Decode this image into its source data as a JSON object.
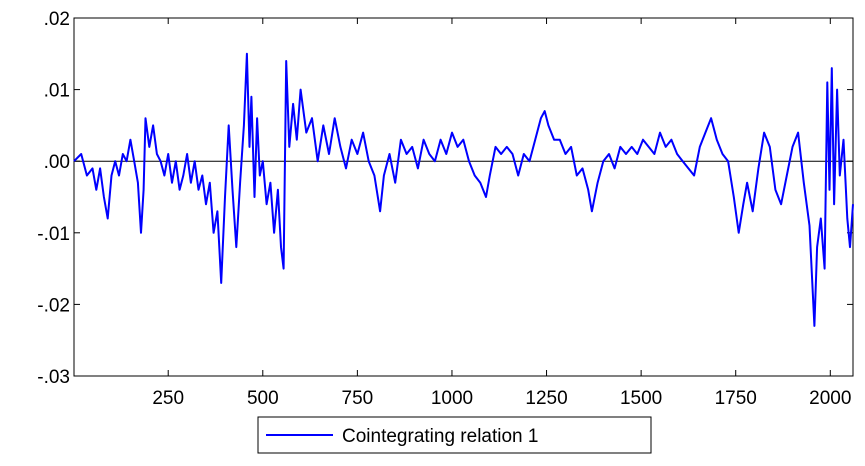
{
  "chart_data": {
    "type": "line",
    "title": "",
    "xlabel": "",
    "ylabel": "",
    "xlim": [
      1,
      2060
    ],
    "ylim": [
      -0.03,
      0.02
    ],
    "x_ticks": [
      250,
      500,
      750,
      1000,
      1250,
      1500,
      1750,
      2000
    ],
    "x_tick_labels": [
      "250",
      "500",
      "750",
      "1000",
      "1250",
      "1500",
      "1750",
      "2000"
    ],
    "y_ticks": [
      0.02,
      0.01,
      0.0,
      -0.01,
      -0.02,
      -0.03
    ],
    "y_tick_labels": [
      ".02",
      ".01",
      ".00",
      "-.01",
      "-.02",
      "-.03"
    ],
    "zero_line": true,
    "grid": false,
    "legend_position": "bottom-center",
    "series": [
      {
        "name": "Cointegrating relation 1",
        "color": "#0000ff",
        "points": [
          [
            1,
            0.0
          ],
          [
            20,
            0.001
          ],
          [
            35,
            -0.002
          ],
          [
            50,
            -0.001
          ],
          [
            60,
            -0.004
          ],
          [
            70,
            -0.001
          ],
          [
            80,
            -0.005
          ],
          [
            90,
            -0.008
          ],
          [
            100,
            -0.002
          ],
          [
            110,
            0.0
          ],
          [
            120,
            -0.002
          ],
          [
            130,
            0.001
          ],
          [
            140,
            0.0
          ],
          [
            150,
            0.003
          ],
          [
            160,
            0.0
          ],
          [
            170,
            -0.003
          ],
          [
            178,
            -0.01
          ],
          [
            185,
            -0.004
          ],
          [
            190,
            0.006
          ],
          [
            200,
            0.002
          ],
          [
            210,
            0.005
          ],
          [
            220,
            0.001
          ],
          [
            230,
            0.0
          ],
          [
            240,
            -0.002
          ],
          [
            250,
            0.001
          ],
          [
            260,
            -0.003
          ],
          [
            270,
            0.0
          ],
          [
            280,
            -0.004
          ],
          [
            290,
            -0.002
          ],
          [
            300,
            0.001
          ],
          [
            310,
            -0.003
          ],
          [
            320,
            0.0
          ],
          [
            330,
            -0.004
          ],
          [
            340,
            -0.002
          ],
          [
            350,
            -0.006
          ],
          [
            360,
            -0.003
          ],
          [
            370,
            -0.01
          ],
          [
            380,
            -0.007
          ],
          [
            390,
            -0.017
          ],
          [
            400,
            -0.005
          ],
          [
            410,
            0.005
          ],
          [
            420,
            -0.004
          ],
          [
            430,
            -0.012
          ],
          [
            440,
            -0.003
          ],
          [
            450,
            0.005
          ],
          [
            458,
            0.015
          ],
          [
            465,
            0.002
          ],
          [
            470,
            0.009
          ],
          [
            478,
            -0.005
          ],
          [
            485,
            0.006
          ],
          [
            492,
            -0.002
          ],
          [
            500,
            0.0
          ],
          [
            510,
            -0.006
          ],
          [
            520,
            -0.003
          ],
          [
            530,
            -0.01
          ],
          [
            540,
            -0.004
          ],
          [
            548,
            -0.012
          ],
          [
            555,
            -0.015
          ],
          [
            562,
            0.014
          ],
          [
            570,
            0.002
          ],
          [
            580,
            0.008
          ],
          [
            590,
            0.003
          ],
          [
            600,
            0.01
          ],
          [
            615,
            0.004
          ],
          [
            630,
            0.006
          ],
          [
            645,
            0.0
          ],
          [
            660,
            0.005
          ],
          [
            675,
            0.001
          ],
          [
            690,
            0.006
          ],
          [
            705,
            0.002
          ],
          [
            720,
            -0.001
          ],
          [
            735,
            0.003
          ],
          [
            750,
            0.001
          ],
          [
            765,
            0.004
          ],
          [
            780,
            0.0
          ],
          [
            795,
            -0.002
          ],
          [
            810,
            -0.007
          ],
          [
            820,
            -0.002
          ],
          [
            835,
            0.001
          ],
          [
            850,
            -0.003
          ],
          [
            865,
            0.003
          ],
          [
            880,
            0.001
          ],
          [
            895,
            0.002
          ],
          [
            910,
            -0.001
          ],
          [
            925,
            0.003
          ],
          [
            940,
            0.001
          ],
          [
            955,
            0.0
          ],
          [
            970,
            0.003
          ],
          [
            985,
            0.001
          ],
          [
            1000,
            0.004
          ],
          [
            1015,
            0.002
          ],
          [
            1030,
            0.003
          ],
          [
            1045,
            0.0
          ],
          [
            1060,
            -0.002
          ],
          [
            1075,
            -0.003
          ],
          [
            1090,
            -0.005
          ],
          [
            1100,
            -0.002
          ],
          [
            1115,
            0.002
          ],
          [
            1130,
            0.001
          ],
          [
            1145,
            0.002
          ],
          [
            1160,
            0.001
          ],
          [
            1175,
            -0.002
          ],
          [
            1190,
            0.001
          ],
          [
            1205,
            0.0
          ],
          [
            1220,
            0.003
          ],
          [
            1235,
            0.006
          ],
          [
            1245,
            0.007
          ],
          [
            1255,
            0.005
          ],
          [
            1270,
            0.003
          ],
          [
            1285,
            0.003
          ],
          [
            1300,
            0.001
          ],
          [
            1315,
            0.002
          ],
          [
            1330,
            -0.002
          ],
          [
            1345,
            -0.001
          ],
          [
            1360,
            -0.004
          ],
          [
            1370,
            -0.007
          ],
          [
            1385,
            -0.003
          ],
          [
            1400,
            0.0
          ],
          [
            1415,
            0.001
          ],
          [
            1430,
            -0.001
          ],
          [
            1445,
            0.002
          ],
          [
            1460,
            0.001
          ],
          [
            1475,
            0.002
          ],
          [
            1490,
            0.001
          ],
          [
            1505,
            0.003
          ],
          [
            1520,
            0.002
          ],
          [
            1535,
            0.001
          ],
          [
            1550,
            0.004
          ],
          [
            1565,
            0.002
          ],
          [
            1580,
            0.003
          ],
          [
            1595,
            0.001
          ],
          [
            1610,
            0.0
          ],
          [
            1625,
            -0.001
          ],
          [
            1640,
            -0.002
          ],
          [
            1655,
            0.002
          ],
          [
            1670,
            0.004
          ],
          [
            1685,
            0.006
          ],
          [
            1700,
            0.003
          ],
          [
            1715,
            0.001
          ],
          [
            1730,
            0.0
          ],
          [
            1745,
            -0.005
          ],
          [
            1758,
            -0.01
          ],
          [
            1770,
            -0.006
          ],
          [
            1780,
            -0.003
          ],
          [
            1795,
            -0.007
          ],
          [
            1810,
            -0.001
          ],
          [
            1825,
            0.004
          ],
          [
            1840,
            0.002
          ],
          [
            1855,
            -0.004
          ],
          [
            1870,
            -0.006
          ],
          [
            1885,
            -0.002
          ],
          [
            1900,
            0.002
          ],
          [
            1915,
            0.004
          ],
          [
            1930,
            -0.003
          ],
          [
            1945,
            -0.009
          ],
          [
            1958,
            -0.023
          ],
          [
            1965,
            -0.012
          ],
          [
            1975,
            -0.008
          ],
          [
            1985,
            -0.015
          ],
          [
            1992,
            0.011
          ],
          [
            1998,
            -0.004
          ],
          [
            2004,
            0.013
          ],
          [
            2010,
            -0.006
          ],
          [
            2018,
            0.01
          ],
          [
            2025,
            -0.002
          ],
          [
            2035,
            0.003
          ],
          [
            2045,
            -0.008
          ],
          [
            2052,
            -0.012
          ],
          [
            2060,
            -0.006
          ]
        ]
      }
    ]
  }
}
